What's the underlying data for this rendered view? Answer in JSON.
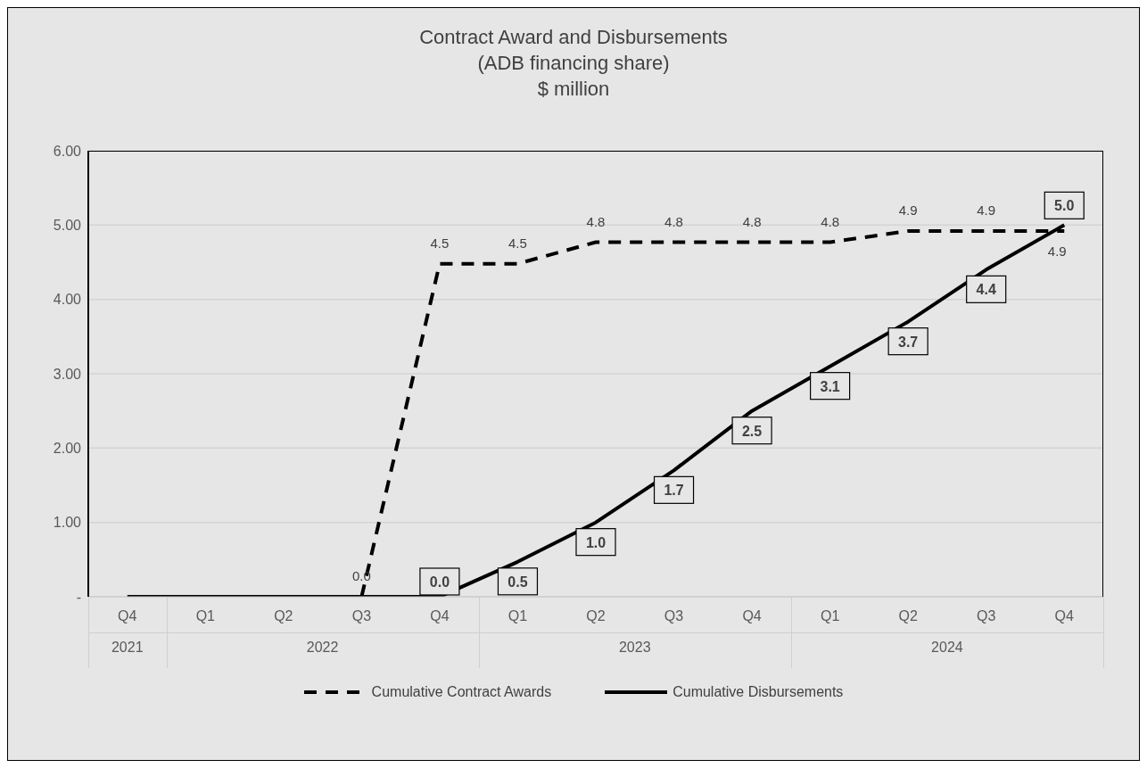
{
  "chart_data": {
    "type": "line",
    "title": "Contract Award and Disbursements",
    "subtitle": "(ADB financing share)\n$ million",
    "categories": [
      "Q4",
      "Q1",
      "Q2",
      "Q3",
      "Q4",
      "Q1",
      "Q2",
      "Q3",
      "Q4",
      "Q1",
      "Q2",
      "Q3",
      "Q4"
    ],
    "annotations": [
      "2021",
      "2022",
      "2023",
      "2024"
    ],
    "series": [
      {
        "name": "Cumulative Contract Awards",
        "color": "#000000",
        "line_style": "dashed",
        "values": [
          null,
          null,
          null,
          0,
          4.48,
          4.48,
          4.77,
          4.77,
          4.77,
          4.77,
          4.92,
          4.92,
          4.92
        ],
        "value_labels": [
          null,
          null,
          null,
          "0.0",
          "4.5",
          "4.5",
          "4.8",
          "4.8",
          "4.8",
          "4.8",
          "4.9",
          "4.9",
          "4.9"
        ]
      },
      {
        "name": "Cumulative Disbursements",
        "color": "#000000",
        "line_style": "solid",
        "values": [
          0,
          0,
          0,
          0,
          0,
          0.47,
          1.0,
          1.7,
          2.5,
          3.1,
          3.7,
          4.4,
          5.0
        ],
        "value_labels": [
          null,
          null,
          null,
          null,
          "0.0",
          "0.5",
          "1.0",
          "1.7",
          "2.5",
          "3.1",
          "3.7",
          "4.4",
          "5.0"
        ]
      }
    ],
    "ylim": [
      0,
      6
    ],
    "yticks": [
      {
        "value": 0,
        "label": "-"
      },
      {
        "value": 1,
        "label": "1.00"
      },
      {
        "value": 2,
        "label": "2.00"
      },
      {
        "value": 3,
        "label": "3.00"
      },
      {
        "value": 4,
        "label": "4.00"
      },
      {
        "value": 5,
        "label": "5.00"
      },
      {
        "value": 6,
        "label": "6.00"
      }
    ],
    "grid": "y",
    "legend": "bottom",
    "marker": "none"
  }
}
